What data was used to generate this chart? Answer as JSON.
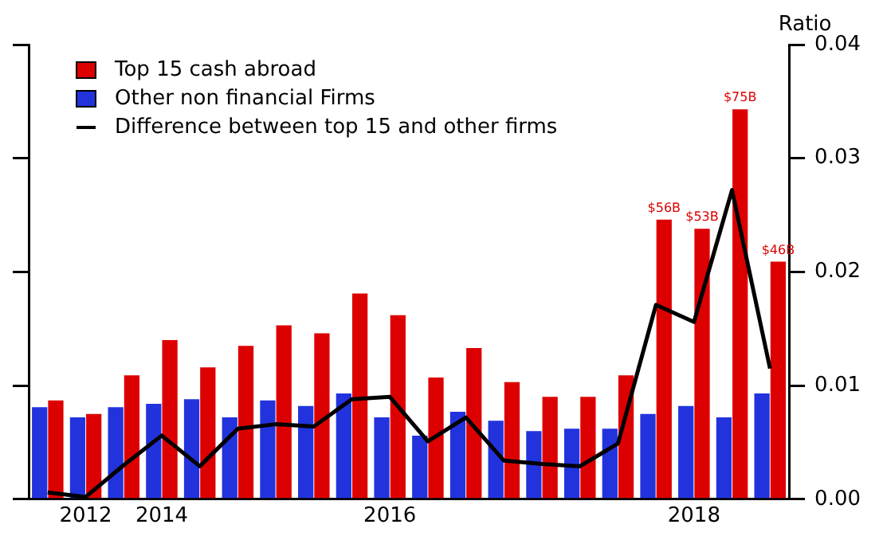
{
  "chart_data": {
    "type": "bar",
    "ylabel": "Ratio",
    "categories": [
      null,
      "2012",
      null,
      "2014",
      null,
      null,
      null,
      null,
      null,
      "2016",
      null,
      null,
      null,
      null,
      null,
      null,
      null,
      "2018",
      null,
      null
    ],
    "series": [
      {
        "name": "Top 15 cash abroad",
        "color": "#dd0000",
        "values": [
          0.0087,
          0.0075,
          0.0109,
          0.014,
          0.0116,
          0.0135,
          0.0153,
          0.0146,
          0.0181,
          0.0162,
          0.0107,
          0.0133,
          0.0103,
          0.009,
          0.009,
          0.0109,
          0.0246,
          0.0238,
          0.0343,
          0.0209
        ]
      },
      {
        "name": "Other non financial Firms",
        "color": "#2233dd",
        "values": [
          0.0081,
          0.0072,
          0.0081,
          0.0084,
          0.0088,
          0.0072,
          0.0087,
          0.0082,
          0.0093,
          0.0072,
          0.0056,
          0.0077,
          0.0069,
          0.006,
          0.0062,
          0.0062,
          0.0075,
          0.0082,
          0.0072,
          0.0093
        ]
      },
      {
        "name": "Difference between top 15 and other firms",
        "type": "line",
        "color": "#000000",
        "values": [
          0.0006,
          0.0002,
          0.003,
          0.0056,
          0.0029,
          0.0062,
          0.0066,
          0.0064,
          0.0088,
          0.009,
          0.0051,
          0.0072,
          0.0034,
          0.0031,
          0.0029,
          0.0049,
          0.0171,
          0.0156,
          0.0272,
          0.0115
        ]
      }
    ],
    "annotations": [
      {
        "text": "$56B",
        "y": 0.0246
      },
      {
        "text": "$53B",
        "y": 0.0238
      },
      {
        "text": "$75B",
        "y": 0.0343
      },
      {
        "text": "$46B",
        "y": 0.0209
      }
    ],
    "ylim": [
      0,
      0.04
    ],
    "yticks": [
      {
        "value": 0,
        "label": "0.00"
      },
      {
        "value": 0.01,
        "label": "0.01"
      },
      {
        "value": 0.02,
        "label": "0.02"
      },
      {
        "value": 0.03,
        "label": "0.03"
      },
      {
        "value": 0.04,
        "label": "0.04"
      }
    ],
    "grid": false,
    "legend": "top left",
    "marker": "none",
    "line_style": "solid"
  }
}
